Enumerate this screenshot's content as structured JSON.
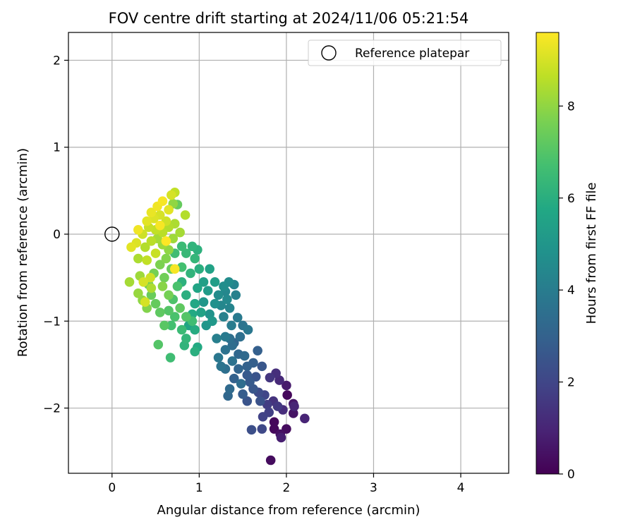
{
  "chart_data": {
    "type": "scatter",
    "title": "FOV centre drift starting at 2024/11/06 05:21:54",
    "xlabel": "Angular distance from reference (arcmin)",
    "ylabel": "Rotation from reference (arcmin)",
    "xlim": [
      -0.5,
      4.55
    ],
    "ylim": [
      -2.75,
      2.32
    ],
    "xticks": [
      0,
      1,
      2,
      3,
      4
    ],
    "yticks": [
      -2,
      -1,
      0,
      1,
      2
    ],
    "xtick_labels": [
      "0",
      "1",
      "2",
      "3",
      "4"
    ],
    "ytick_labels": [
      "−2",
      "−1",
      "0",
      "1",
      "2"
    ],
    "grid": true,
    "legend": {
      "placement": "upper-right",
      "entries": [
        {
          "label": "Reference platepar",
          "marker": "open-circle"
        }
      ]
    },
    "reference_point": {
      "x": 0,
      "y": 0
    },
    "colorbar": {
      "label": "Hours from first FF file",
      "colormap": "viridis",
      "range": [
        0,
        9.6
      ],
      "ticks": [
        0,
        2,
        4,
        6,
        8
      ],
      "tick_labels": [
        "0",
        "2",
        "4",
        "6",
        "8"
      ]
    },
    "points": [
      [
        1.82,
        -2.6,
        0.3
      ],
      [
        1.86,
        -2.24,
        0.2
      ],
      [
        1.93,
        -2.3,
        0.4
      ],
      [
        2.0,
        -2.24,
        0.3
      ],
      [
        1.86,
        -2.16,
        0.2
      ],
      [
        1.94,
        -2.34,
        0.8
      ],
      [
        2.08,
        -2.06,
        0.5
      ],
      [
        2.21,
        -2.12,
        1.0
      ],
      [
        2.08,
        -1.95,
        0.6
      ],
      [
        2.01,
        -1.85,
        0.2
      ],
      [
        2.0,
        -1.74,
        0.7
      ],
      [
        1.92,
        -1.68,
        1.1
      ],
      [
        1.88,
        -1.6,
        1.3
      ],
      [
        1.81,
        -1.65,
        1.5
      ],
      [
        1.96,
        -2.02,
        1.2
      ],
      [
        2.09,
        -1.98,
        1.0
      ],
      [
        1.9,
        -1.98,
        1.6
      ],
      [
        1.8,
        -2.05,
        1.8
      ],
      [
        1.73,
        -2.1,
        1.9
      ],
      [
        1.72,
        -2.24,
        2.1
      ],
      [
        1.6,
        -2.25,
        2.3
      ],
      [
        1.85,
        -1.92,
        1.4
      ],
      [
        1.75,
        -1.85,
        2.0
      ],
      [
        1.68,
        -1.82,
        2.2
      ],
      [
        1.78,
        -1.96,
        1.7
      ],
      [
        1.7,
        -1.92,
        2.4
      ],
      [
        1.62,
        -1.78,
        2.6
      ],
      [
        1.55,
        -1.92,
        2.5
      ],
      [
        1.5,
        -1.84,
        2.8
      ],
      [
        1.58,
        -1.7,
        2.7
      ],
      [
        1.65,
        -1.64,
        2.5
      ],
      [
        1.72,
        -1.52,
        2.6
      ],
      [
        1.62,
        -1.48,
        2.9
      ],
      [
        1.67,
        -1.34,
        2.9
      ],
      [
        1.55,
        -1.52,
        3.0
      ],
      [
        1.45,
        -1.55,
        3.1
      ],
      [
        1.4,
        -1.66,
        3.0
      ],
      [
        1.35,
        -1.78,
        3.3
      ],
      [
        1.33,
        -1.86,
        3.2
      ],
      [
        1.48,
        -1.72,
        3.4
      ],
      [
        1.52,
        -1.4,
        3.3
      ],
      [
        1.45,
        -1.38,
        3.2
      ],
      [
        1.38,
        -1.46,
        3.6
      ],
      [
        1.3,
        -1.55,
        3.5
      ],
      [
        1.25,
        -1.52,
        3.7
      ],
      [
        1.22,
        -1.42,
        3.8
      ],
      [
        1.3,
        -1.33,
        3.6
      ],
      [
        1.38,
        -1.28,
        3.4
      ],
      [
        1.47,
        -1.18,
        3.5
      ],
      [
        1.5,
        -1.05,
        3.7
      ],
      [
        1.56,
        -1.1,
        3.8
      ],
      [
        1.44,
        -0.96,
        3.9
      ],
      [
        1.37,
        -1.05,
        4.0
      ],
      [
        1.3,
        -1.18,
        3.9
      ],
      [
        1.2,
        -1.2,
        4.1
      ],
      [
        1.28,
        -0.95,
        4.2
      ],
      [
        1.35,
        -0.85,
        4.3
      ],
      [
        1.32,
        -0.75,
        4.5
      ],
      [
        1.3,
        -0.66,
        4.4
      ],
      [
        1.4,
        -0.58,
        4.3
      ],
      [
        1.34,
        -0.55,
        4.6
      ],
      [
        1.28,
        -0.6,
        4.7
      ],
      [
        1.22,
        -0.7,
        4.6
      ],
      [
        1.18,
        -0.8,
        4.8
      ],
      [
        1.12,
        -0.92,
        4.9
      ],
      [
        1.08,
        -1.05,
        5.0
      ],
      [
        1.15,
        -1.0,
        5.1
      ],
      [
        1.05,
        -0.78,
        5.0
      ],
      [
        1.1,
        -0.65,
        5.2
      ],
      [
        1.18,
        -0.55,
        5.3
      ],
      [
        1.05,
        -0.55,
        5.4
      ],
      [
        0.98,
        -0.62,
        5.6
      ],
      [
        1.12,
        -0.4,
        5.5
      ],
      [
        0.95,
        -0.8,
        5.7
      ],
      [
        0.92,
        -0.92,
        5.8
      ],
      [
        0.88,
        -1.05,
        5.6
      ],
      [
        0.95,
        -1.1,
        5.9
      ],
      [
        0.85,
        -0.7,
        6.0
      ],
      [
        0.8,
        -0.55,
        6.1
      ],
      [
        0.9,
        -0.45,
        6.2
      ],
      [
        1.0,
        -0.4,
        6.0
      ],
      [
        0.95,
        -0.28,
        6.3
      ],
      [
        0.85,
        -0.22,
        6.4
      ],
      [
        0.92,
        -0.14,
        6.2
      ],
      [
        0.98,
        -0.18,
        6.1
      ],
      [
        0.8,
        -0.14,
        6.5
      ],
      [
        0.72,
        -0.22,
        6.6
      ],
      [
        0.8,
        -0.38,
        6.7
      ],
      [
        0.75,
        -0.6,
        6.8
      ],
      [
        0.7,
        -0.75,
        6.9
      ],
      [
        0.65,
        -0.88,
        7.0
      ],
      [
        0.72,
        -0.95,
        6.8
      ],
      [
        0.68,
        -1.05,
        6.7
      ],
      [
        0.8,
        -1.1,
        6.5
      ],
      [
        0.85,
        -1.2,
        6.3
      ],
      [
        0.95,
        -1.35,
        6.0
      ],
      [
        0.98,
        -1.3,
        5.8
      ],
      [
        0.83,
        -1.28,
        6.2
      ],
      [
        0.53,
        -1.27,
        7.0
      ],
      [
        0.67,
        -1.42,
        6.6
      ],
      [
        0.6,
        -1.05,
        7.1
      ],
      [
        0.55,
        -0.9,
        7.2
      ],
      [
        0.5,
        -0.8,
        7.3
      ],
      [
        0.45,
        -0.7,
        7.4
      ],
      [
        0.42,
        -0.58,
        7.5
      ],
      [
        0.48,
        -0.45,
        7.6
      ],
      [
        0.55,
        -0.35,
        7.7
      ],
      [
        0.62,
        -0.28,
        7.8
      ],
      [
        0.6,
        -0.5,
        7.5
      ],
      [
        0.68,
        -0.4,
        7.4
      ],
      [
        0.4,
        -0.85,
        7.8
      ],
      [
        0.35,
        -0.76,
        8.0
      ],
      [
        0.3,
        -0.68,
        8.1
      ],
      [
        0.32,
        -0.48,
        8.2
      ],
      [
        0.2,
        -0.55,
        8.3
      ],
      [
        0.3,
        -0.28,
        8.4
      ],
      [
        0.38,
        -0.15,
        8.5
      ],
      [
        0.45,
        -0.08,
        8.6
      ],
      [
        0.52,
        -0.05,
        8.3
      ],
      [
        0.58,
        -0.12,
        8.2
      ],
      [
        0.65,
        -0.18,
        8.0
      ],
      [
        0.4,
        -0.3,
        8.7
      ],
      [
        0.5,
        -0.22,
        8.8
      ],
      [
        0.44,
        -0.5,
        8.9
      ],
      [
        0.36,
        -0.55,
        9.0
      ],
      [
        0.28,
        -0.1,
        9.1
      ],
      [
        0.22,
        -0.15,
        9.2
      ],
      [
        0.35,
        0.0,
        8.9
      ],
      [
        0.42,
        0.08,
        8.8
      ],
      [
        0.5,
        0.05,
        8.7
      ],
      [
        0.58,
        0.02,
        8.6
      ],
      [
        0.65,
        0.08,
        8.5
      ],
      [
        0.72,
        0.12,
        8.4
      ],
      [
        0.78,
        0.02,
        8.3
      ],
      [
        0.7,
        -0.05,
        8.2
      ],
      [
        0.62,
        0.15,
        8.9
      ],
      [
        0.55,
        0.22,
        9.0
      ],
      [
        0.48,
        0.18,
        9.1
      ],
      [
        0.4,
        0.15,
        9.2
      ],
      [
        0.45,
        0.25,
        9.3
      ],
      [
        0.52,
        0.32,
        9.4
      ],
      [
        0.58,
        0.38,
        9.5
      ],
      [
        0.65,
        0.28,
        9.2
      ],
      [
        0.7,
        0.35,
        8.0
      ],
      [
        0.75,
        0.34,
        7.3
      ],
      [
        0.68,
        0.45,
        9.0
      ],
      [
        0.72,
        0.48,
        8.7
      ],
      [
        0.84,
        0.22,
        8.5
      ],
      [
        0.3,
        0.05,
        9.4
      ],
      [
        0.55,
        0.1,
        9.5
      ],
      [
        0.62,
        -0.08,
        9.6
      ],
      [
        0.72,
        -0.4,
        9.5
      ],
      [
        0.38,
        -0.78,
        9.0
      ],
      [
        0.45,
        -0.62,
        8.4
      ],
      [
        0.58,
        -0.6,
        7.9
      ],
      [
        0.65,
        -0.7,
        7.6
      ],
      [
        0.78,
        -0.85,
        7.2
      ],
      [
        0.85,
        -0.95,
        7.0
      ],
      [
        0.92,
        -1.0,
        6.6
      ],
      [
        1.02,
        -0.9,
        5.5
      ],
      [
        1.25,
        -0.82,
        4.4
      ],
      [
        1.42,
        -0.7,
        4.2
      ],
      [
        1.4,
        -1.25,
        3.1
      ],
      [
        1.55,
        -1.62,
        2.7
      ],
      [
        1.35,
        -1.2,
        3.5
      ]
    ]
  }
}
